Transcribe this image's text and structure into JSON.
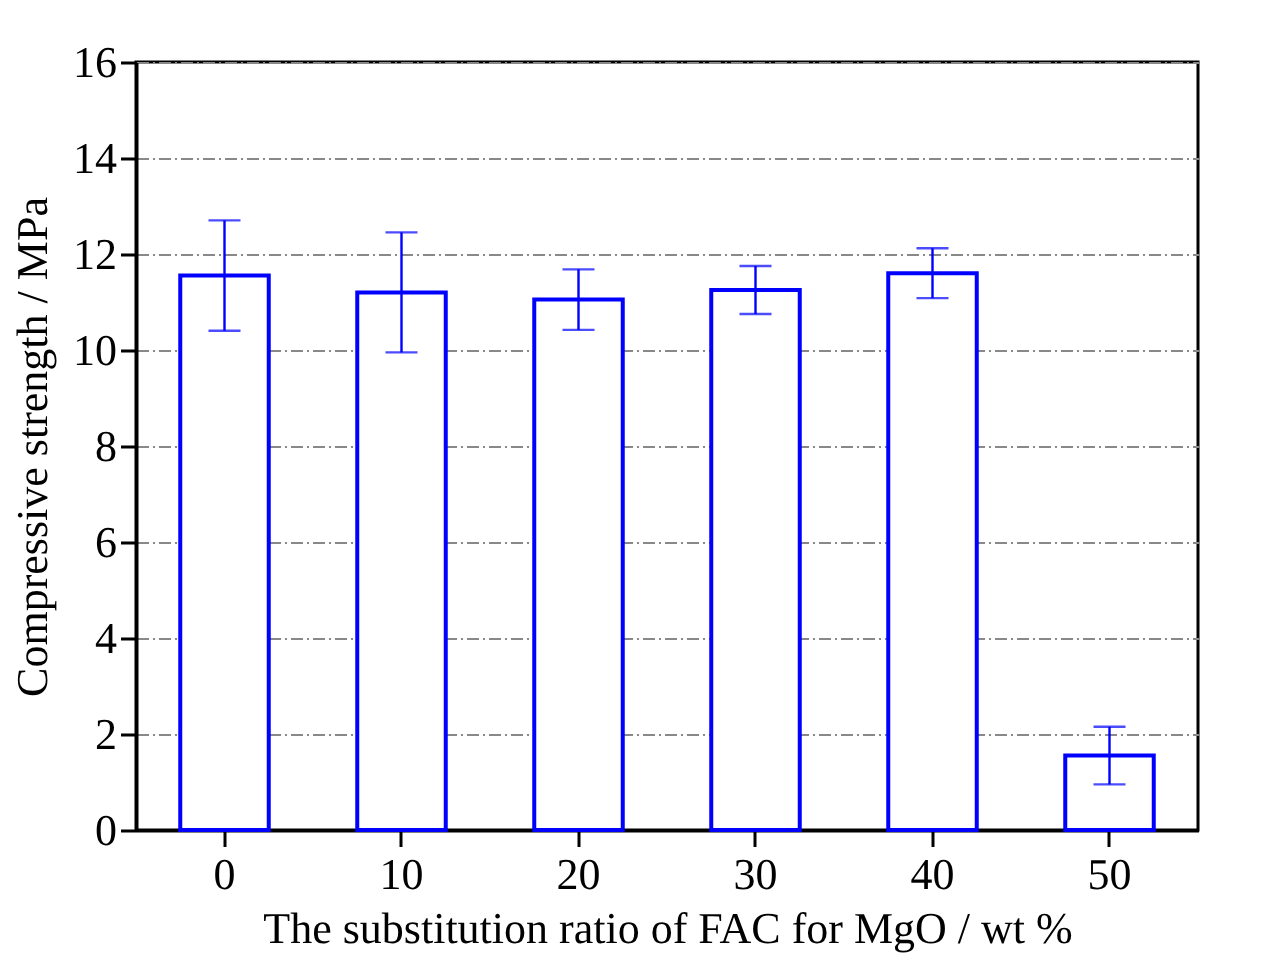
{
  "chart_data": {
    "type": "bar",
    "xlabel": "The substitution ratio of FAC for MgO / wt %",
    "ylabel": "Compressive strength / MPa",
    "categories": [
      "0",
      "10",
      "20",
      "30",
      "40",
      "50"
    ],
    "values": [
      11.55,
      11.2,
      11.05,
      11.25,
      11.6,
      1.55
    ],
    "errors": [
      1.15,
      1.25,
      0.63,
      0.5,
      0.52,
      0.6
    ],
    "color": "#0000ff",
    "ylim": [
      0,
      16
    ],
    "yticks": [
      0,
      2,
      4,
      6,
      8,
      10,
      12,
      14,
      16
    ],
    "grid": "y"
  }
}
